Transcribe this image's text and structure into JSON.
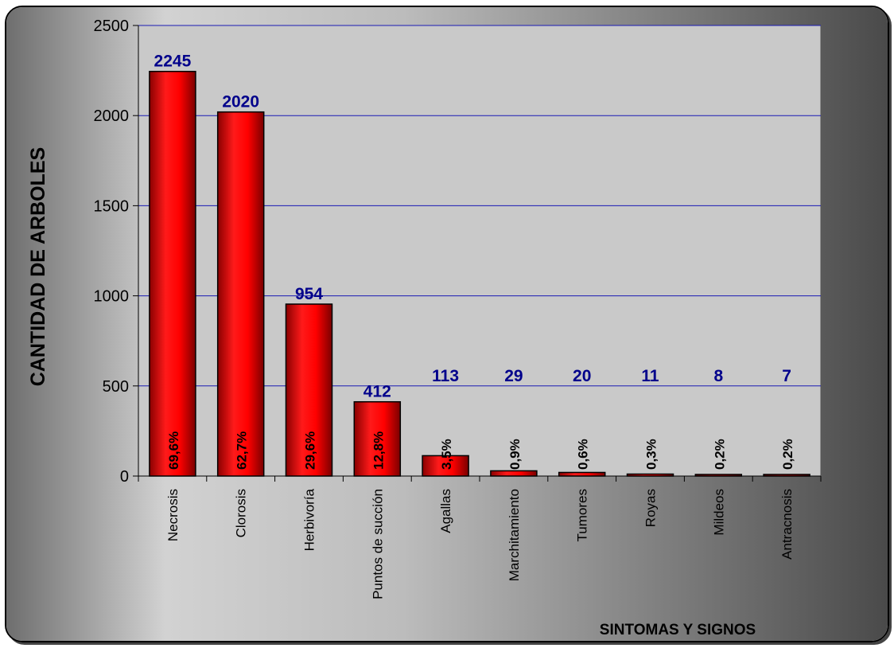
{
  "chart_data": {
    "type": "bar",
    "xlabel": "SINTOMAS Y SIGNOS",
    "ylabel": "CANTIDAD DE ARBOLES",
    "ylim": [
      0,
      2500
    ],
    "yticks": [
      "0",
      "500",
      "1000",
      "1500",
      "2000",
      "2500"
    ],
    "grid": true,
    "categories": [
      "Necrosis",
      "Clorosis",
      "Herbivoría",
      "Puntos de  succión",
      "Agallas",
      "Marchitamiento",
      "Tumores",
      "Royas",
      "Mildeos",
      "Antracnosis"
    ],
    "values": [
      2245,
      2020,
      954,
      412,
      113,
      29,
      20,
      11,
      8,
      7
    ],
    "value_labels": [
      "2245",
      "2020",
      "954",
      "412",
      "113",
      "29",
      "20",
      "11",
      "8",
      "7"
    ],
    "percent_labels": [
      "69,6%",
      "62,7%",
      "29,6%",
      "12,8%",
      "3,5%",
      "0,9%",
      "0,6%",
      "0,3%",
      "0,2%",
      "0,2%"
    ],
    "colors": {
      "bar": "#ff0000",
      "bar_dark": "#8a0000",
      "value_label": "#00008b",
      "gridline": "#1a1ab4",
      "plot_bg": "#c8c8c8"
    }
  }
}
